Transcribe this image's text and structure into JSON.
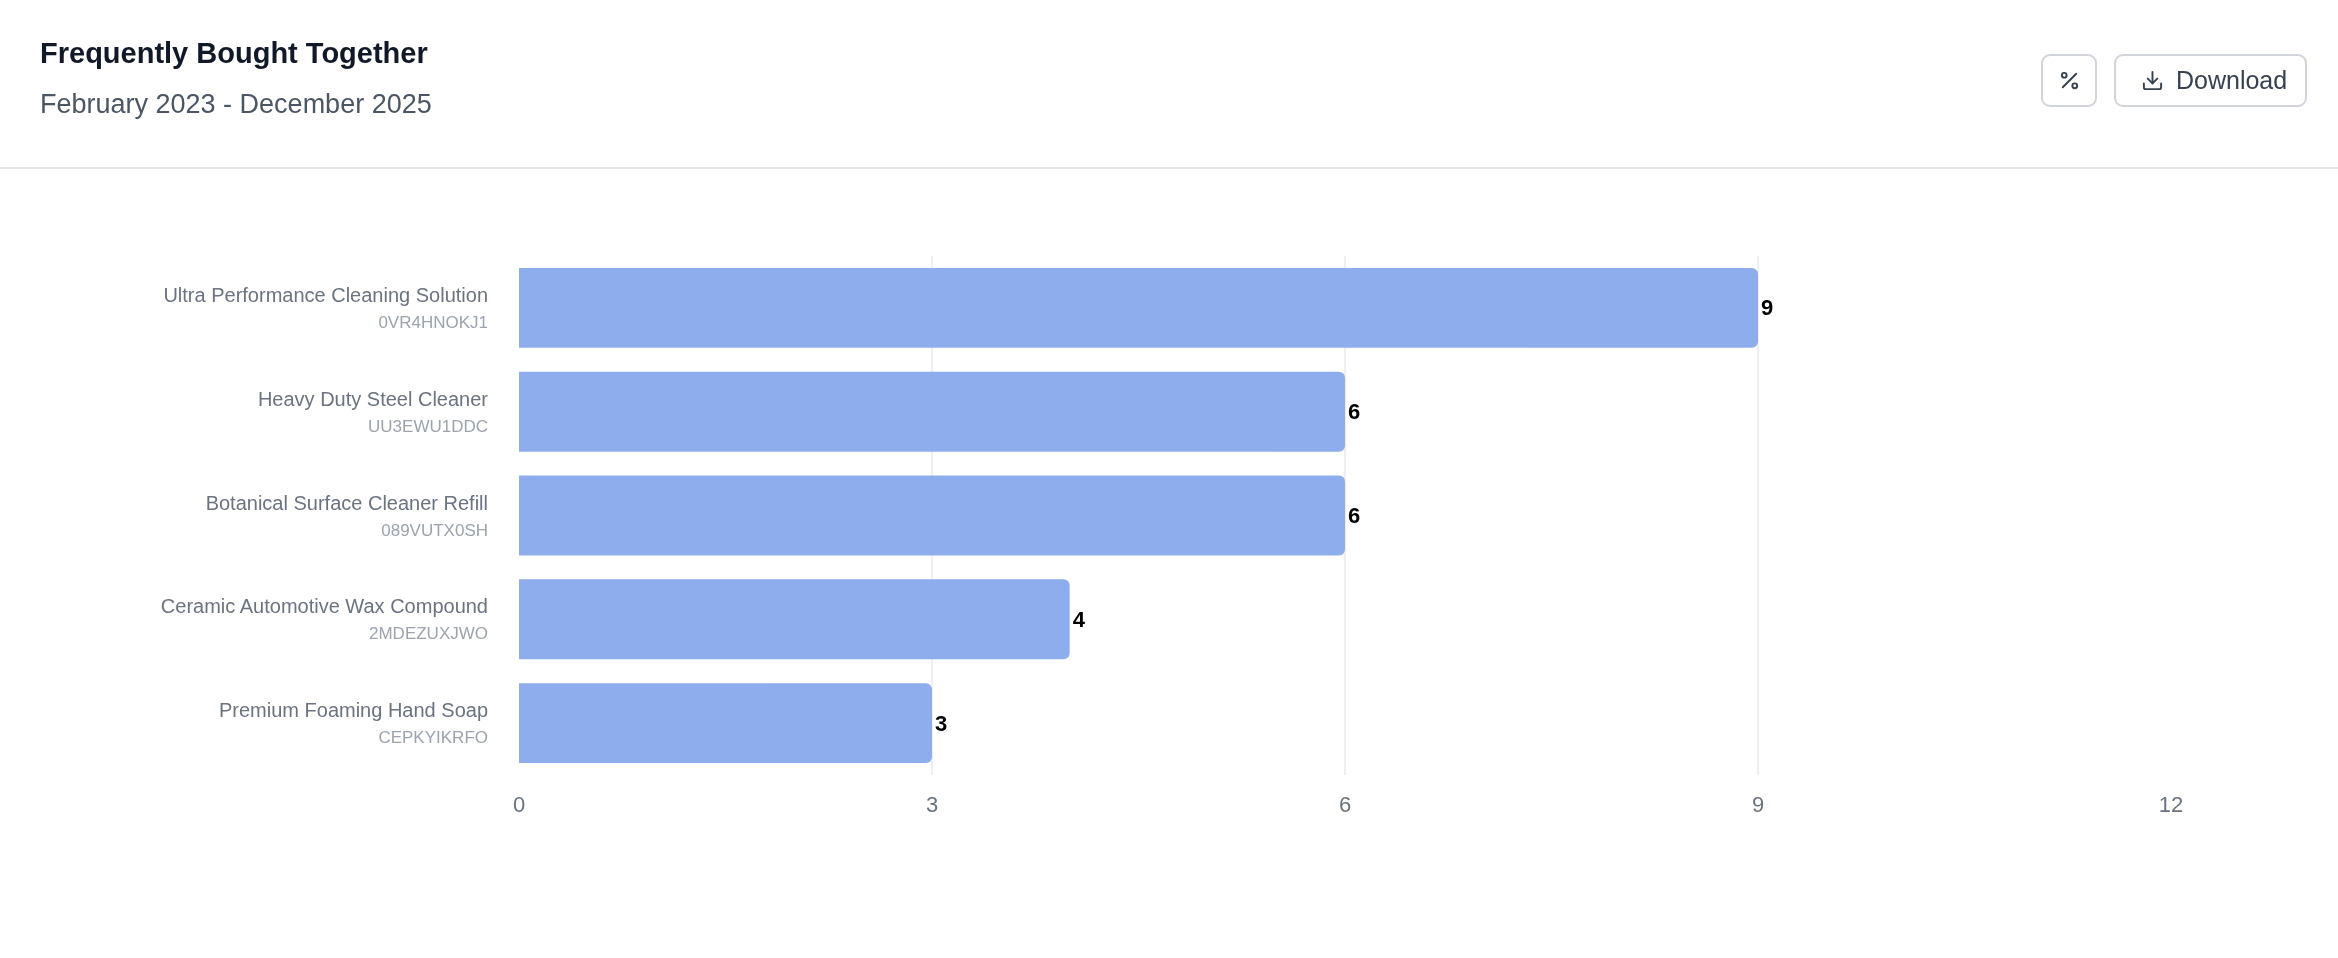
{
  "chart_data": {
    "type": "bar",
    "title": "Frequently Bought Together",
    "subtitle": "February 2023 - December 2025",
    "orientation": "horizontal",
    "categories": [
      "Ultra Performance Cleaning Solution\n0VR4HNOKJ1",
      "Heavy Duty Steel Cleaner\nUU3EWU1DDC",
      "Botanical Surface Cleaner Refill\n089VUTX0SH",
      "Ceramic Automotive Wax Compound\n2MDEZUXJWO",
      "Premium Foaming Hand Soap\nCEPKYIKRFO"
    ],
    "values": [
      9,
      6,
      6,
      4,
      3
    ],
    "color": "#8eadec",
    "xlim": [
      0,
      12
    ],
    "xticks": [
      0,
      3,
      6,
      9,
      12
    ],
    "grid": "x",
    "data_labels": true,
    "annotations": [
      "Download"
    ]
  }
}
